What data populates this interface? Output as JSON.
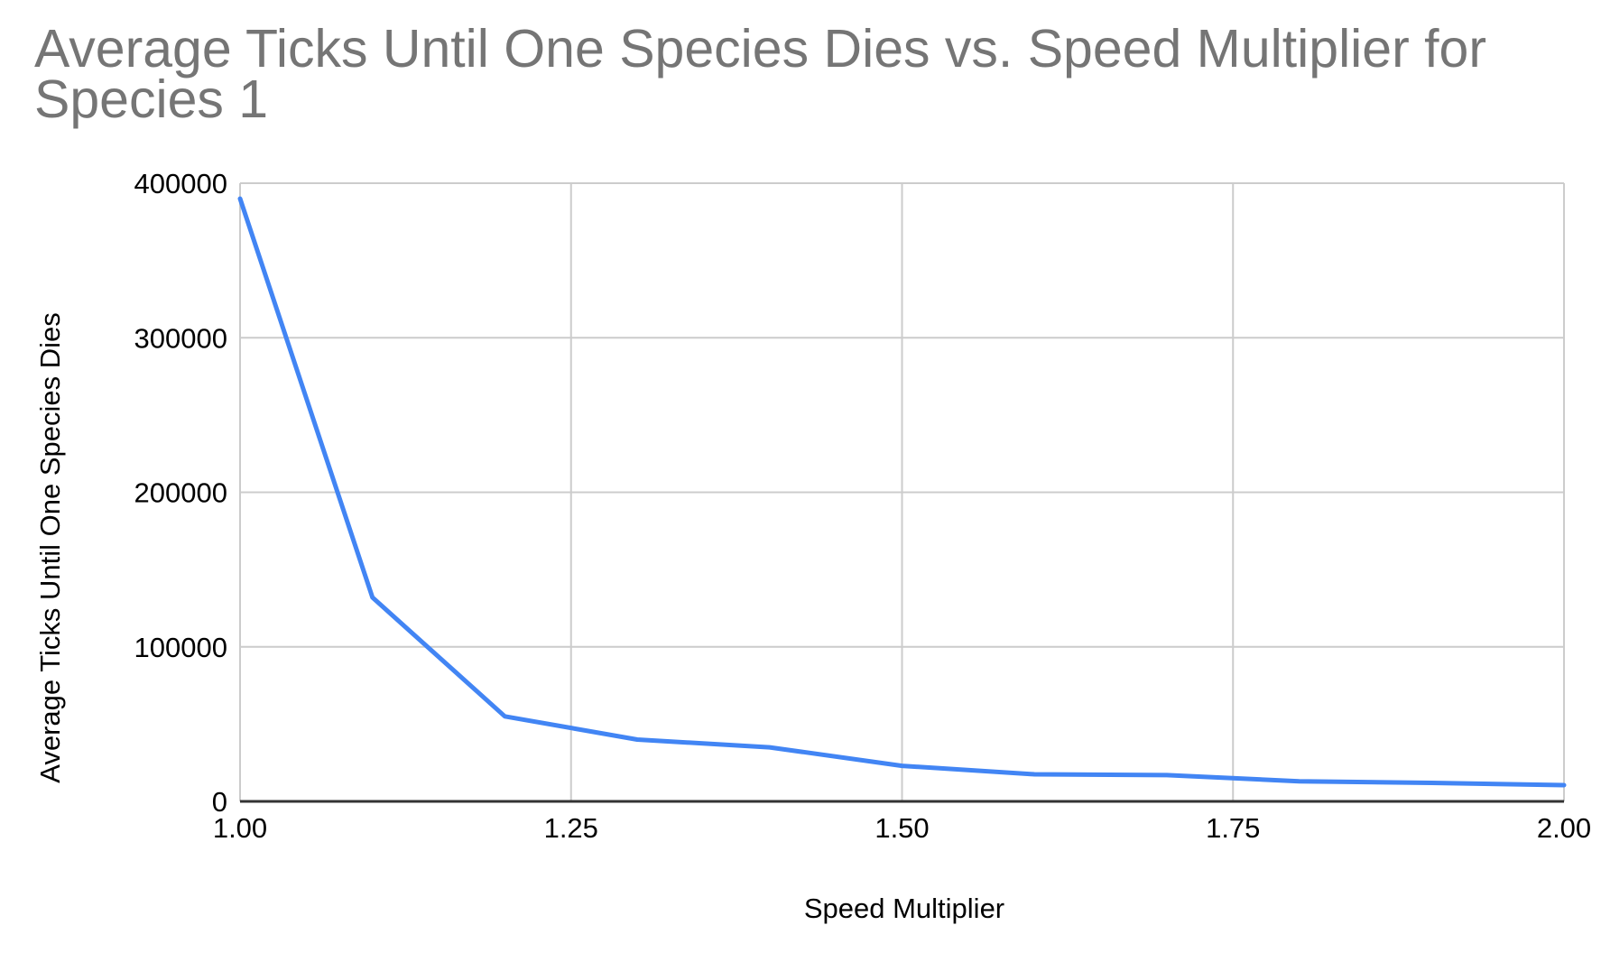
{
  "chart_data": {
    "type": "line",
    "title": "Average Ticks Until One Species Dies vs. Speed Multiplier for Species 1",
    "xlabel": "Speed Multiplier",
    "ylabel": "Average Ticks Until One Species Dies",
    "xlim": [
      1.0,
      2.0
    ],
    "ylim": [
      0,
      400000
    ],
    "x_ticks": [
      "1.00",
      "1.25",
      "1.50",
      "1.75",
      "2.00"
    ],
    "y_ticks": [
      "0",
      "100000",
      "200000",
      "300000",
      "400000"
    ],
    "grid": true,
    "legend": "none",
    "series": [
      {
        "color": "#4285F4",
        "points": [
          {
            "x": 1.0,
            "y": 390000
          },
          {
            "x": 1.1,
            "y": 132000
          },
          {
            "x": 1.2,
            "y": 55000
          },
          {
            "x": 1.3,
            "y": 40000
          },
          {
            "x": 1.4,
            "y": 35000
          },
          {
            "x": 1.5,
            "y": 23000
          },
          {
            "x": 1.6,
            "y": 17500
          },
          {
            "x": 1.7,
            "y": 17000
          },
          {
            "x": 1.8,
            "y": 13000
          },
          {
            "x": 1.9,
            "y": 12000
          },
          {
            "x": 2.0,
            "y": 10500
          }
        ]
      }
    ],
    "colors": {
      "grid": "#cccccc",
      "axis": "#333333",
      "title": "#757575"
    }
  }
}
